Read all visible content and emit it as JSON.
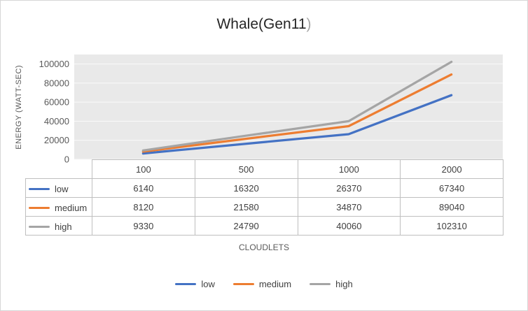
{
  "frame": {
    "border_color": "#d6d6d6",
    "background": "#ffffff"
  },
  "title": {
    "text": "Whale(Gen11)",
    "main": "Whale(Gen11",
    "suffix": ")",
    "suffix_color": "#a6a6a6"
  },
  "chart_data": {
    "type": "line",
    "title": "Whale(Gen11)",
    "categories": [
      "100",
      "500",
      "1000",
      "2000"
    ],
    "series": [
      {
        "name": "low",
        "color": "#4472C4",
        "values": [
          6140,
          16320,
          26370,
          67340
        ]
      },
      {
        "name": "medium",
        "color": "#ED7D31",
        "values": [
          8120,
          21580,
          34870,
          89040
        ]
      },
      {
        "name": "high",
        "color": "#A5A5A5",
        "values": [
          9330,
          24790,
          40060,
          102310
        ]
      }
    ],
    "xlabel": "CLOUDLETS",
    "ylabel": "ENERGY (WATT-SEC)",
    "y_ticks": [
      0,
      20000,
      40000,
      60000,
      80000,
      100000
    ],
    "ylim": [
      0,
      110000
    ],
    "grid": true,
    "legend_position": "bottom",
    "data_table_visible": true,
    "plot_bg": "#e9e9e9",
    "gridline_color": "#fafafa",
    "tick_color": "#595959",
    "table_border_color": "#bfbfbf",
    "text_color": "#404040"
  }
}
